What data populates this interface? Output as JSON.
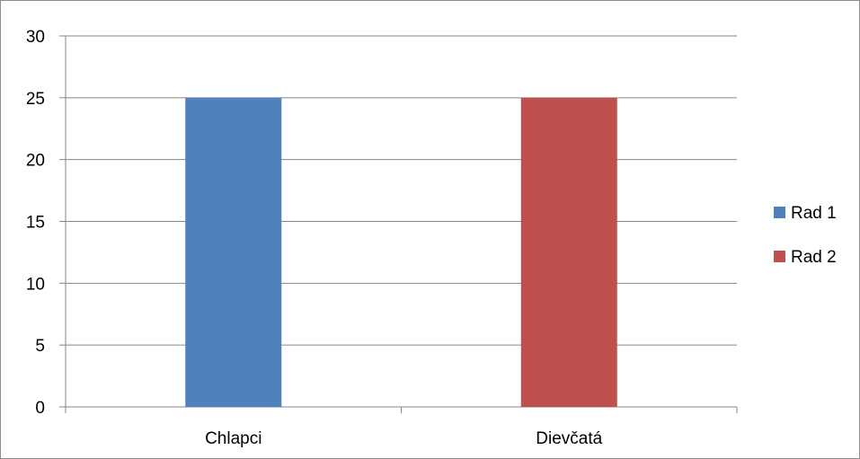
{
  "chart_data": {
    "type": "bar",
    "categories": [
      "Chlapci",
      "Dievčatá"
    ],
    "series": [
      {
        "name": "Rad 1",
        "color": "#4f81bd",
        "values": [
          25,
          null
        ]
      },
      {
        "name": "Rad 2",
        "color": "#c0504d",
        "values": [
          null,
          25
        ]
      }
    ],
    "ylim": [
      0,
      30
    ],
    "yticks": [
      0,
      5,
      10,
      15,
      20,
      25,
      30
    ],
    "grid": true,
    "legend": "right"
  }
}
